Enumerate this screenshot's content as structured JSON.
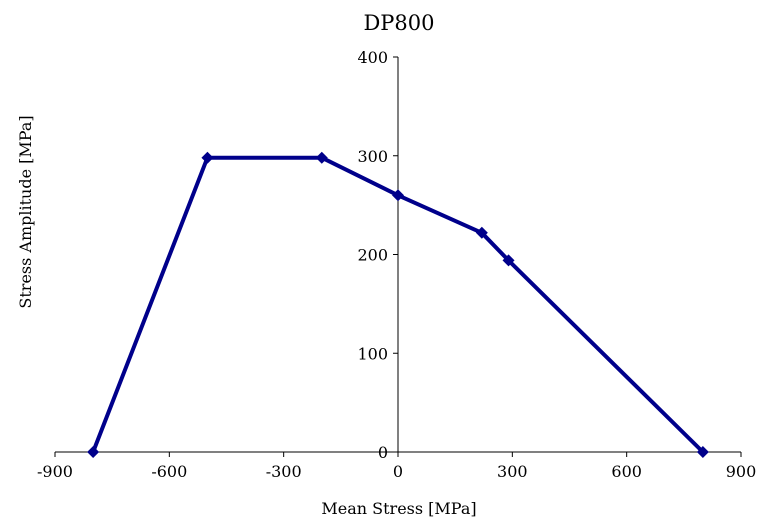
{
  "chart_data": {
    "type": "line",
    "title": "DP800",
    "xlabel": "Mean Stress [MPa]",
    "ylabel": "Stress Amplitude [MPa]",
    "xlim": [
      -900,
      900
    ],
    "ylim": [
      0,
      400
    ],
    "x_ticks": [
      "-900",
      "-600",
      "-300",
      "0",
      "300",
      "600",
      "900"
    ],
    "y_ticks": [
      "0",
      "100",
      "200",
      "300",
      "400"
    ],
    "grid": false,
    "legend": "none",
    "series": [
      {
        "color": "#00008b",
        "marker": "diamond",
        "x": [
          -800,
          -500,
          -200,
          0,
          220,
          290,
          800
        ],
        "y": [
          0,
          298,
          298,
          260,
          222,
          194,
          0
        ]
      }
    ]
  }
}
